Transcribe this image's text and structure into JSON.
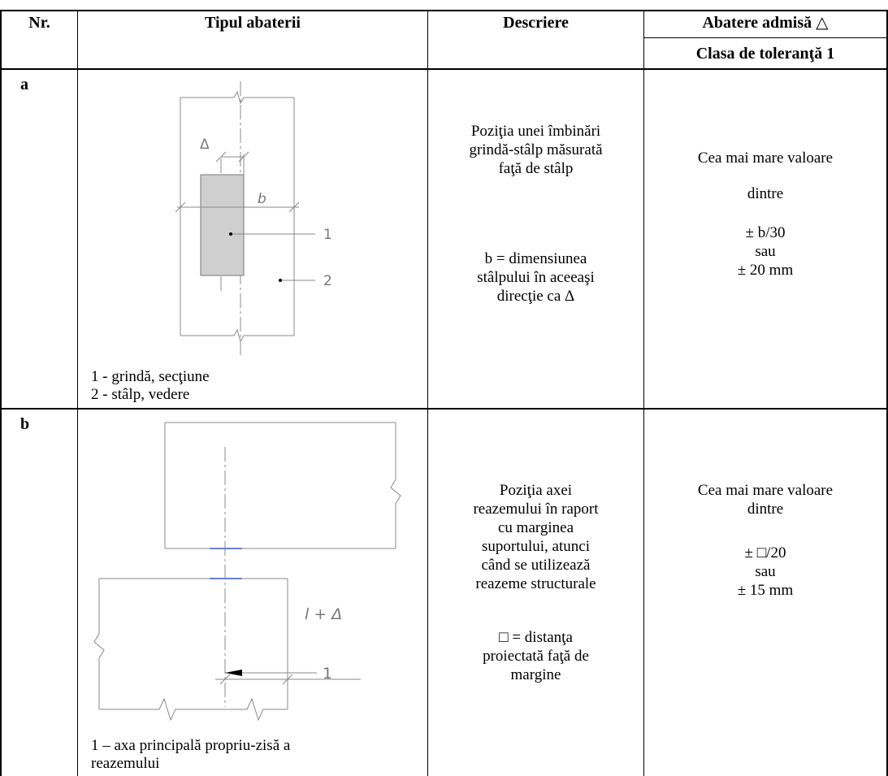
{
  "header": {
    "nr": "Nr.",
    "tipul": "Tipul abaterii",
    "descriere": "Descriere",
    "abatere": "Abatere admisă",
    "abatere_symbol": "△",
    "clasa": "Clasa de toleranţă 1"
  },
  "rows": [
    {
      "nr": "a",
      "figure_labels": {
        "delta": "Δ",
        "b": "b",
        "n1": "1",
        "n2": "2"
      },
      "legend": [
        "1 - grindă, secţiune",
        "2 - stâlp, vedere"
      ],
      "descriere": [
        "Poziţia unei îmbinări",
        "grindă-stâlp măsurată",
        "faţă de stâlp"
      ],
      "descriere_note": [
        "b = dimensiunea",
        "stâlpului în aceeaşi",
        "direcţie ca Δ"
      ],
      "abatere": [
        "Cea mai mare valoare",
        "dintre",
        "± b/30",
        "sau",
        "± 20 mm"
      ]
    },
    {
      "nr": "b",
      "figure_labels": {
        "l_delta": "l + Δ",
        "n1": "1"
      },
      "legend": [
        "1 – axa principală propriu-zisă a",
        "reazemului"
      ],
      "descriere": [
        "Poziţia axei",
        "reazemului în raport",
        "cu marginea",
        "suportului, atunci",
        "când se utilizează",
        "reazeme structurale"
      ],
      "descriere_note": [
        "□ = distanţa",
        "proiectată faţă de",
        "margine"
      ],
      "abatere": [
        "Cea mai mare valoare",
        "dintre",
        "± □/20",
        "sau",
        "± 15 mm"
      ]
    }
  ]
}
